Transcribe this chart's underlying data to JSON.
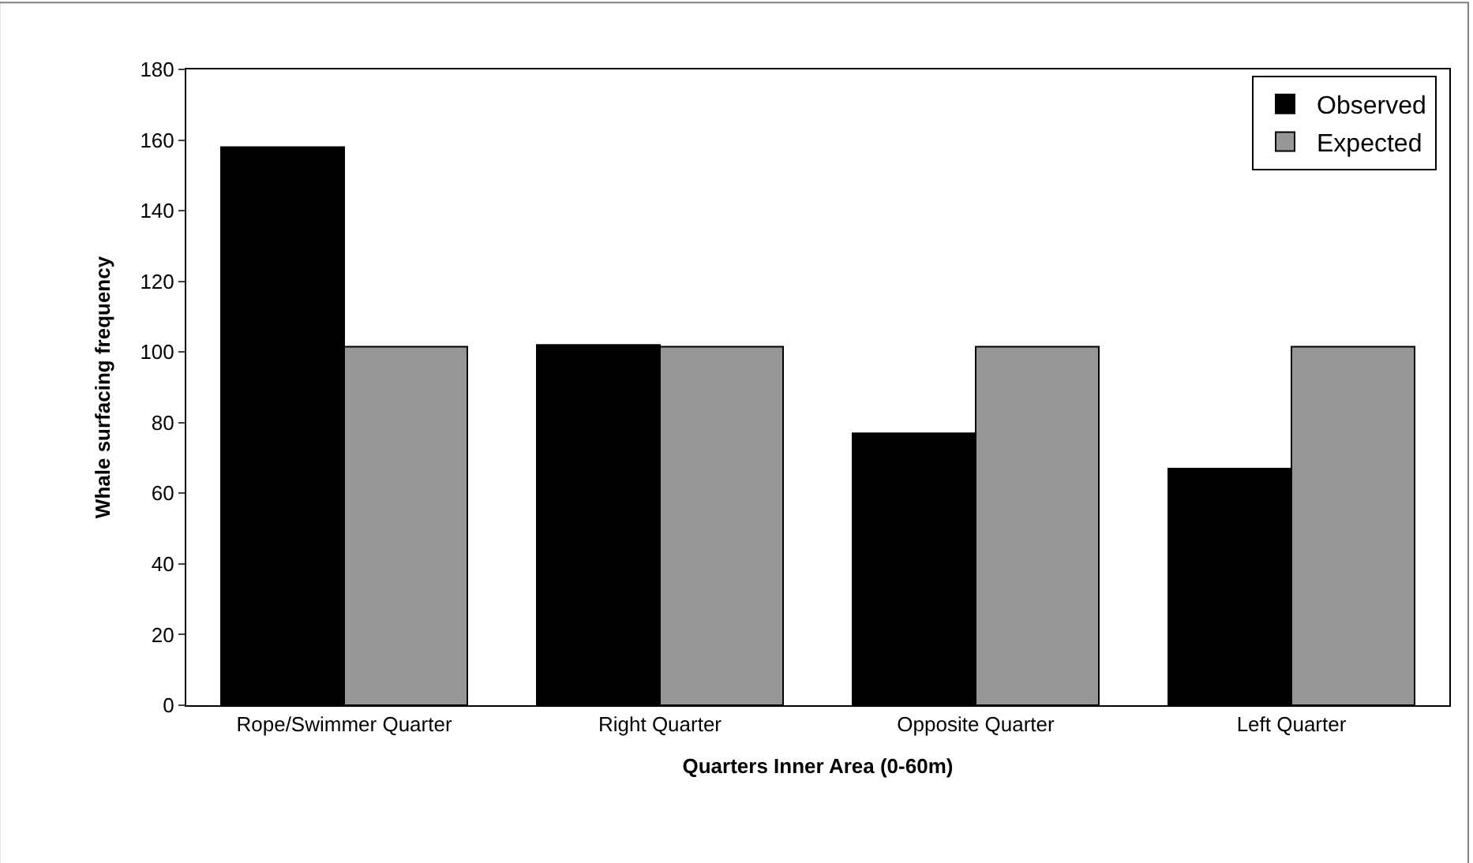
{
  "chart_data": {
    "type": "bar",
    "xlabel": "Quarters Inner Area (0-60m)",
    "ylabel": "Whale surfacing frequency",
    "categories": [
      "Rope/Swimmer Quarter",
      "Right Quarter",
      "Opposite Quarter",
      "Left Quarter"
    ],
    "series": [
      {
        "name": "Observed",
        "color": "#000000",
        "values": [
          158,
          102,
          77,
          67
        ]
      },
      {
        "name": "Expected",
        "color": "#969696",
        "values": [
          101.5,
          101.5,
          101.5,
          101.5
        ]
      }
    ],
    "ylim": [
      0,
      180
    ],
    "yticks": [
      0,
      20,
      40,
      60,
      80,
      100,
      120,
      140,
      160,
      180
    ],
    "grid": false,
    "legend": "top right"
  }
}
